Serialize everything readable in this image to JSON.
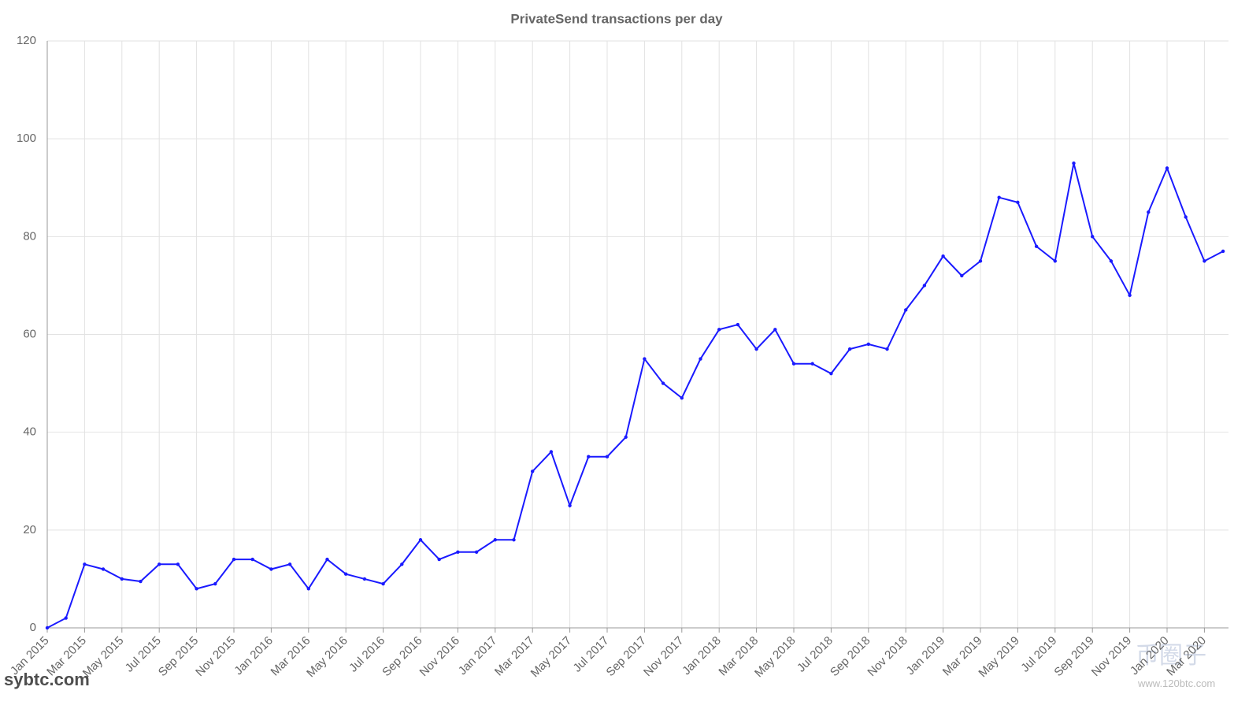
{
  "chart_data": {
    "type": "line",
    "title": "PrivateSend transactions per day",
    "categories": [
      "Jan 2015",
      null,
      "Mar 2015",
      null,
      "May 2015",
      null,
      "Jul 2015",
      null,
      "Sep 2015",
      null,
      "Nov 2015",
      null,
      "Jan 2016",
      null,
      "Mar 2016",
      null,
      "May 2016",
      null,
      "Jul 2016",
      null,
      "Sep 2016",
      null,
      "Nov 2016",
      null,
      "Jan 2017",
      null,
      "Mar 2017",
      null,
      "May 2017",
      null,
      "Jul 2017",
      null,
      "Sep 2017",
      null,
      "Nov 2017",
      null,
      "Jan 2018",
      null,
      "Mar 2018",
      null,
      "May 2018",
      null,
      "Jul 2018",
      null,
      "Sep 2018",
      null,
      "Nov 2018",
      null,
      "Jan 2019",
      null,
      "Mar 2019",
      null,
      "May 2019",
      null,
      "Jul 2019",
      null,
      "Sep 2019",
      null,
      "Nov 2019",
      null,
      "Jan 2020",
      null,
      "Mar 2020",
      null
    ],
    "series": [
      {
        "name": "PrivateSend transactions",
        "color": "#1a1aff",
        "values": [
          0,
          2,
          13,
          12,
          10,
          9.5,
          13,
          13,
          8,
          9,
          14,
          14,
          12,
          13,
          8,
          14,
          11,
          10,
          9,
          13,
          18,
          14,
          15.5,
          15.5,
          18,
          18,
          32,
          36,
          25,
          35,
          35,
          39,
          55,
          50,
          47,
          55,
          61,
          62,
          57,
          61,
          54,
          54,
          52,
          57,
          58,
          57,
          65,
          70,
          76,
          72,
          75,
          88,
          87,
          78,
          75,
          95,
          80,
          75,
          68,
          85,
          94,
          84,
          75,
          77
        ]
      }
    ],
    "ylim": [
      0,
      120
    ],
    "yticks": [
      0,
      20,
      40,
      60,
      80,
      100,
      120
    ],
    "grid": true,
    "watermarks": [
      "sybtc.com",
      "币圈子",
      "www.120btc.com"
    ]
  }
}
